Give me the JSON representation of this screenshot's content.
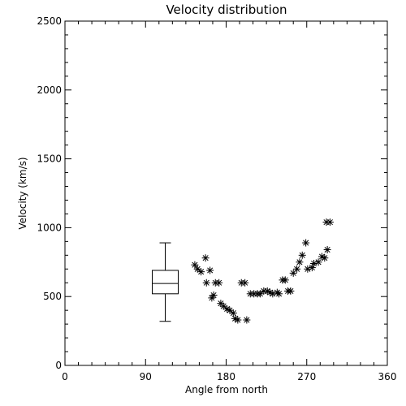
{
  "chart_data": {
    "type": "scatter",
    "title": "Velocity distribution",
    "xlabel": "Angle from north",
    "ylabel": "Velocity (km/s)",
    "xlim": [
      0,
      360
    ],
    "ylim": [
      0,
      2500
    ],
    "x_ticks": [
      0,
      90,
      180,
      270,
      360
    ],
    "y_ticks": [
      0,
      500,
      1000,
      1500,
      2000,
      2500
    ],
    "grid": false,
    "marker": "asterisk",
    "box_plot": {
      "x": 112,
      "min": 320,
      "q1": 520,
      "median": 595,
      "q3": 690,
      "max": 890
    },
    "points": [
      [
        145,
        730
      ],
      [
        148,
        700
      ],
      [
        152,
        680
      ],
      [
        157,
        780
      ],
      [
        158,
        600
      ],
      [
        162,
        690
      ],
      [
        164,
        490
      ],
      [
        166,
        510
      ],
      [
        168,
        600
      ],
      [
        172,
        600
      ],
      [
        174,
        450
      ],
      [
        177,
        430
      ],
      [
        181,
        410
      ],
      [
        184,
        400
      ],
      [
        188,
        380
      ],
      [
        190,
        340
      ],
      [
        193,
        330
      ],
      [
        197,
        600
      ],
      [
        201,
        600
      ],
      [
        203,
        330
      ],
      [
        207,
        520
      ],
      [
        211,
        520
      ],
      [
        215,
        520
      ],
      [
        218,
        520
      ],
      [
        222,
        540
      ],
      [
        226,
        540
      ],
      [
        229,
        530
      ],
      [
        232,
        520
      ],
      [
        237,
        530
      ],
      [
        239,
        520
      ],
      [
        243,
        620
      ],
      [
        246,
        620
      ],
      [
        249,
        540
      ],
      [
        252,
        540
      ],
      [
        255,
        670
      ],
      [
        259,
        700
      ],
      [
        262,
        750
      ],
      [
        265,
        800
      ],
      [
        269,
        890
      ],
      [
        271,
        700
      ],
      [
        276,
        710
      ],
      [
        278,
        740
      ],
      [
        283,
        750
      ],
      [
        287,
        790
      ],
      [
        290,
        780
      ],
      [
        293,
        840
      ],
      [
        292,
        1040
      ],
      [
        296,
        1040
      ]
    ]
  }
}
